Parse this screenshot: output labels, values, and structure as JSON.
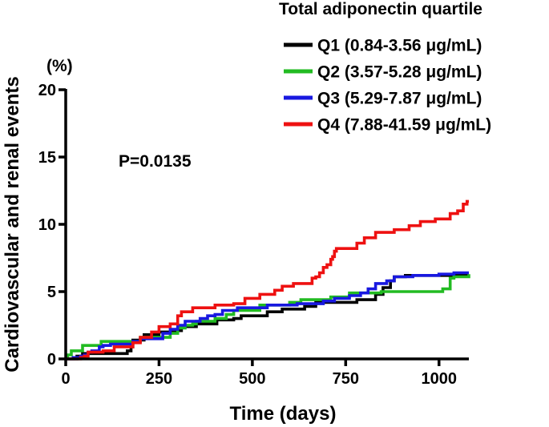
{
  "chart_data": {
    "type": "line",
    "step": true,
    "title": "",
    "xlabel": "Time (days)",
    "ylabel": "Cardiovascular and renal events",
    "y_unit": "(%)",
    "xlim": [
      0,
      1080
    ],
    "ylim": [
      0,
      20
    ],
    "xticks": [
      0,
      250,
      500,
      750,
      1000
    ],
    "yticks": [
      0,
      5,
      10,
      15,
      20
    ],
    "legend_title": "Total adiponectin quartile",
    "legend_position": "top-right",
    "annotation": "P=0.0135",
    "series": [
      {
        "name": "Q1 (0.84-3.56 μg/mL)",
        "color": "#000000",
        "points": [
          [
            0,
            0
          ],
          [
            25,
            0
          ],
          [
            30,
            0.2
          ],
          [
            45,
            0.4
          ],
          [
            60,
            0.4
          ],
          [
            150,
            0.4
          ],
          [
            165,
            0.6
          ],
          [
            175,
            0.9
          ],
          [
            180,
            1.4
          ],
          [
            200,
            1.4
          ],
          [
            210,
            1.8
          ],
          [
            240,
            1.8
          ],
          [
            250,
            2.0
          ],
          [
            300,
            2.1
          ],
          [
            310,
            2.4
          ],
          [
            345,
            2.4
          ],
          [
            350,
            2.6
          ],
          [
            400,
            2.6
          ],
          [
            405,
            2.9
          ],
          [
            440,
            2.9
          ],
          [
            450,
            3.0
          ],
          [
            460,
            3.0
          ],
          [
            470,
            3.2
          ],
          [
            520,
            3.2
          ],
          [
            540,
            3.5
          ],
          [
            560,
            3.5
          ],
          [
            580,
            3.7
          ],
          [
            605,
            3.7
          ],
          [
            640,
            3.9
          ],
          [
            650,
            3.9
          ],
          [
            670,
            4.2
          ],
          [
            710,
            4.2
          ],
          [
            730,
            4.2
          ],
          [
            780,
            4.4
          ],
          [
            815,
            4.4
          ],
          [
            830,
            4.8
          ],
          [
            850,
            5.3
          ],
          [
            870,
            5.8
          ],
          [
            880,
            6.1
          ],
          [
            910,
            6.2
          ],
          [
            960,
            6.2
          ],
          [
            1000,
            6.2
          ],
          [
            1050,
            6.2
          ],
          [
            1080,
            6.2
          ]
        ]
      },
      {
        "name": "Q2 (3.57-5.28 μg/mL)",
        "color": "#22bb22",
        "points": [
          [
            0,
            0
          ],
          [
            5,
            0.3
          ],
          [
            15,
            0.6
          ],
          [
            40,
            0.6
          ],
          [
            45,
            1.0
          ],
          [
            85,
            1.0
          ],
          [
            95,
            1.3
          ],
          [
            140,
            1.3
          ],
          [
            200,
            1.6
          ],
          [
            280,
            1.9
          ],
          [
            300,
            2.3
          ],
          [
            320,
            2.5
          ],
          [
            340,
            2.6
          ],
          [
            350,
            2.8
          ],
          [
            390,
            2.8
          ],
          [
            400,
            3.0
          ],
          [
            420,
            3.0
          ],
          [
            430,
            3.3
          ],
          [
            445,
            3.3
          ],
          [
            450,
            3.6
          ],
          [
            500,
            3.6
          ],
          [
            520,
            4.0
          ],
          [
            560,
            4.0
          ],
          [
            600,
            4.2
          ],
          [
            620,
            4.2
          ],
          [
            630,
            4.4
          ],
          [
            700,
            4.4
          ],
          [
            710,
            4.6
          ],
          [
            750,
            4.6
          ],
          [
            760,
            4.9
          ],
          [
            830,
            4.9
          ],
          [
            845,
            5.0
          ],
          [
            950,
            5.0
          ],
          [
            1000,
            5.0
          ],
          [
            1010,
            5.2
          ],
          [
            1030,
            6.0
          ],
          [
            1040,
            6.1
          ],
          [
            1060,
            6.1
          ],
          [
            1080,
            6.3
          ]
        ]
      },
      {
        "name": "Q3 (5.29-7.87 μg/mL)",
        "color": "#1818e0",
        "points": [
          [
            0,
            0
          ],
          [
            20,
            0.1
          ],
          [
            40,
            0.2
          ],
          [
            50,
            0.3
          ],
          [
            60,
            0.5
          ],
          [
            70,
            0.6
          ],
          [
            80,
            0.6
          ],
          [
            90,
            0.9
          ],
          [
            100,
            1.0
          ],
          [
            120,
            1.1
          ],
          [
            150,
            1.1
          ],
          [
            180,
            1.3
          ],
          [
            200,
            1.5
          ],
          [
            240,
            1.5
          ],
          [
            260,
            1.9
          ],
          [
            280,
            2.2
          ],
          [
            300,
            2.5
          ],
          [
            320,
            2.8
          ],
          [
            340,
            2.8
          ],
          [
            360,
            3.0
          ],
          [
            380,
            3.2
          ],
          [
            400,
            3.3
          ],
          [
            420,
            3.6
          ],
          [
            440,
            3.6
          ],
          [
            460,
            3.8
          ],
          [
            520,
            3.8
          ],
          [
            540,
            4.0
          ],
          [
            600,
            4.0
          ],
          [
            620,
            4.1
          ],
          [
            660,
            4.1
          ],
          [
            690,
            4.3
          ],
          [
            720,
            4.5
          ],
          [
            760,
            4.7
          ],
          [
            790,
            4.9
          ],
          [
            810,
            5.2
          ],
          [
            830,
            5.6
          ],
          [
            860,
            5.8
          ],
          [
            880,
            6.1
          ],
          [
            930,
            6.2
          ],
          [
            950,
            6.2
          ],
          [
            1000,
            6.3
          ],
          [
            1040,
            6.4
          ],
          [
            1080,
            6.4
          ]
        ]
      },
      {
        "name": "Q4 (7.88-41.59 μg/mL)",
        "color": "#ee1111",
        "points": [
          [
            0,
            0
          ],
          [
            40,
            0.1
          ],
          [
            50,
            0.2
          ],
          [
            60,
            0.5
          ],
          [
            100,
            0.6
          ],
          [
            110,
            0.6
          ],
          [
            130,
            0.9
          ],
          [
            180,
            1.2
          ],
          [
            200,
            1.6
          ],
          [
            230,
            2.0
          ],
          [
            250,
            2.4
          ],
          [
            280,
            2.6
          ],
          [
            300,
            3.2
          ],
          [
            310,
            3.5
          ],
          [
            340,
            3.8
          ],
          [
            360,
            3.8
          ],
          [
            400,
            4.0
          ],
          [
            450,
            4.1
          ],
          [
            480,
            4.5
          ],
          [
            520,
            4.8
          ],
          [
            560,
            5.1
          ],
          [
            580,
            5.4
          ],
          [
            610,
            5.6
          ],
          [
            640,
            5.6
          ],
          [
            660,
            6.0
          ],
          [
            670,
            6.1
          ],
          [
            680,
            6.4
          ],
          [
            690,
            6.8
          ],
          [
            700,
            7.0
          ],
          [
            710,
            7.4
          ],
          [
            715,
            7.6
          ],
          [
            720,
            8.0
          ],
          [
            725,
            8.2
          ],
          [
            770,
            8.2
          ],
          [
            780,
            8.6
          ],
          [
            800,
            9.0
          ],
          [
            830,
            9.4
          ],
          [
            880,
            9.6
          ],
          [
            920,
            9.9
          ],
          [
            950,
            10.2
          ],
          [
            970,
            10.2
          ],
          [
            990,
            10.4
          ],
          [
            1020,
            10.4
          ],
          [
            1030,
            10.8
          ],
          [
            1050,
            11.0
          ],
          [
            1065,
            11.5
          ],
          [
            1075,
            11.7
          ],
          [
            1080,
            11.7
          ]
        ]
      }
    ]
  }
}
